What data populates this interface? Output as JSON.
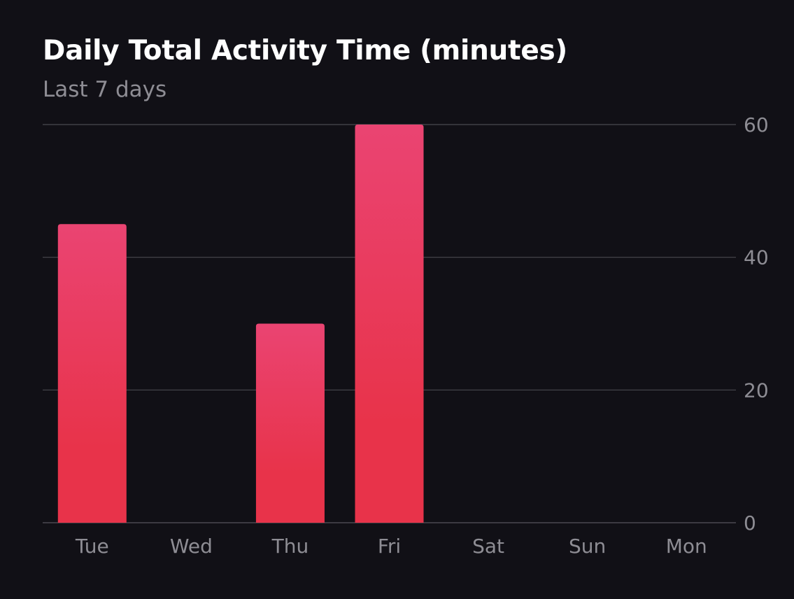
{
  "chart_data": {
    "type": "bar",
    "title": "Daily Total Activity Time (minutes)",
    "subtitle": "Last 7 days",
    "categories": [
      "Tue",
      "Wed",
      "Thu",
      "Fri",
      "Sat",
      "Sun",
      "Mon"
    ],
    "values": [
      45,
      0,
      30,
      60,
      0,
      0,
      0
    ],
    "ylim": [
      0,
      60
    ],
    "yticks": [
      "0",
      "20",
      "40",
      "60"
    ],
    "ytick_values": [
      0,
      20,
      40,
      60
    ],
    "grid": true,
    "y_axis_side": "right",
    "colors": {
      "bar_top": "#ea4472",
      "bar_bottom": "#e8334a",
      "background": "#111016",
      "grid": "#4a4950",
      "tick_text": "#8e8d94",
      "title": "#ffffff",
      "subtitle": "#8e8d94"
    }
  }
}
